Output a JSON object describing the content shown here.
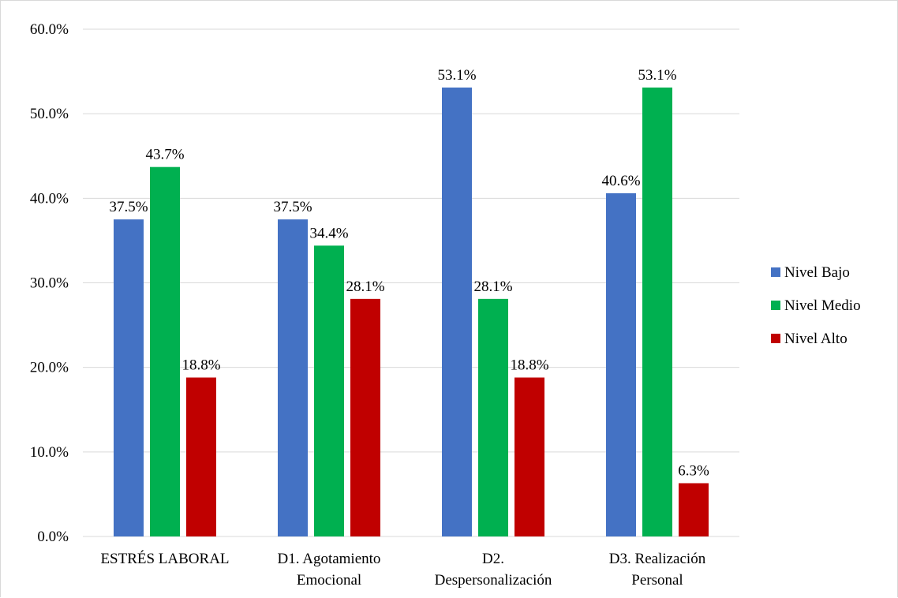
{
  "chart_data": {
    "type": "bar",
    "title": "",
    "xlabel": "",
    "ylabel": "",
    "ylim": [
      0,
      60
    ],
    "y_ticks": [
      "0.0%",
      "10.0%",
      "20.0%",
      "30.0%",
      "40.0%",
      "50.0%",
      "60.0%"
    ],
    "y_tick_values": [
      0,
      10,
      20,
      30,
      40,
      50,
      60
    ],
    "grid": true,
    "legend_position": "right",
    "categories": [
      [
        "ESTRÉS LABORAL"
      ],
      [
        "D1. Agotamiento",
        "Emocional"
      ],
      [
        "D2.",
        "Despersonalización"
      ],
      [
        "D3. Realización",
        "Personal"
      ]
    ],
    "series": [
      {
        "name": "Nivel Bajo",
        "color": "#4472C4",
        "values": [
          37.5,
          37.5,
          53.1,
          40.6
        ],
        "labels": [
          "37.5%",
          "37.5%",
          "53.1%",
          "40.6%"
        ]
      },
      {
        "name": "Nivel Medio",
        "color": "#00B050",
        "values": [
          43.7,
          34.4,
          28.1,
          53.1
        ],
        "labels": [
          "43.7%",
          "34.4%",
          "28.1%",
          "53.1%"
        ]
      },
      {
        "name": "Nivel Alto",
        "color": "#C00000",
        "values": [
          18.8,
          28.1,
          18.8,
          6.3
        ],
        "labels": [
          "18.8%",
          "28.1%",
          "18.8%",
          "6.3%"
        ]
      }
    ]
  }
}
